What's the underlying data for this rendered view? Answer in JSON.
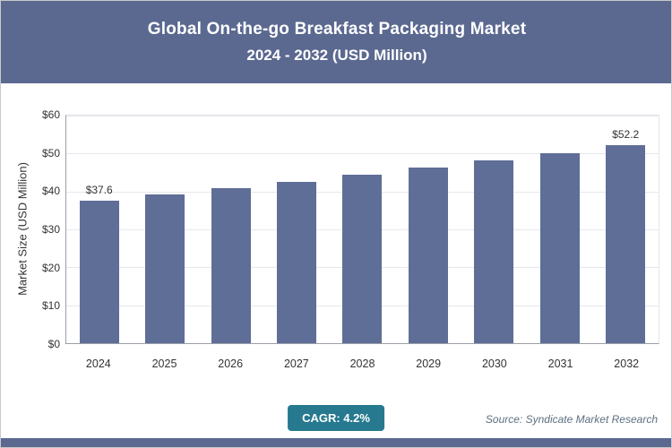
{
  "header": {
    "title": "Global On-the-go Breakfast Packaging Market",
    "subtitle": "2024 - 2032 (USD Million)"
  },
  "chart_data": {
    "type": "bar",
    "title": "Global On-the-go Breakfast Packaging Market 2024 - 2032 (USD Million)",
    "categories": [
      "2024",
      "2025",
      "2026",
      "2027",
      "2028",
      "2029",
      "2030",
      "2031",
      "2032"
    ],
    "values": [
      37.6,
      39.2,
      40.8,
      42.5,
      44.3,
      46.2,
      48.1,
      50.2,
      52.2
    ],
    "bar_labels": [
      "$37.6",
      "",
      "",
      "",
      "",
      "",
      "",
      "",
      "$52.2"
    ],
    "xlabel": "",
    "ylabel": "Market Size (USD Million)",
    "ylim": [
      0,
      60
    ],
    "yticks": [
      0,
      10,
      20,
      30,
      40,
      50,
      60
    ],
    "ytick_labels": [
      "$0",
      "$10",
      "$20",
      "$30",
      "$40",
      "$50",
      "$60"
    ],
    "grid": true,
    "legend": "none",
    "bar_color": "#5f6e97"
  },
  "footer": {
    "cagr_label": "CAGR: 4.2%",
    "source": "Source: Syndicate Market Research"
  },
  "colors": {
    "header_bg": "#5b6990",
    "badge_bg": "#26798f",
    "bar": "#5f6e97"
  }
}
